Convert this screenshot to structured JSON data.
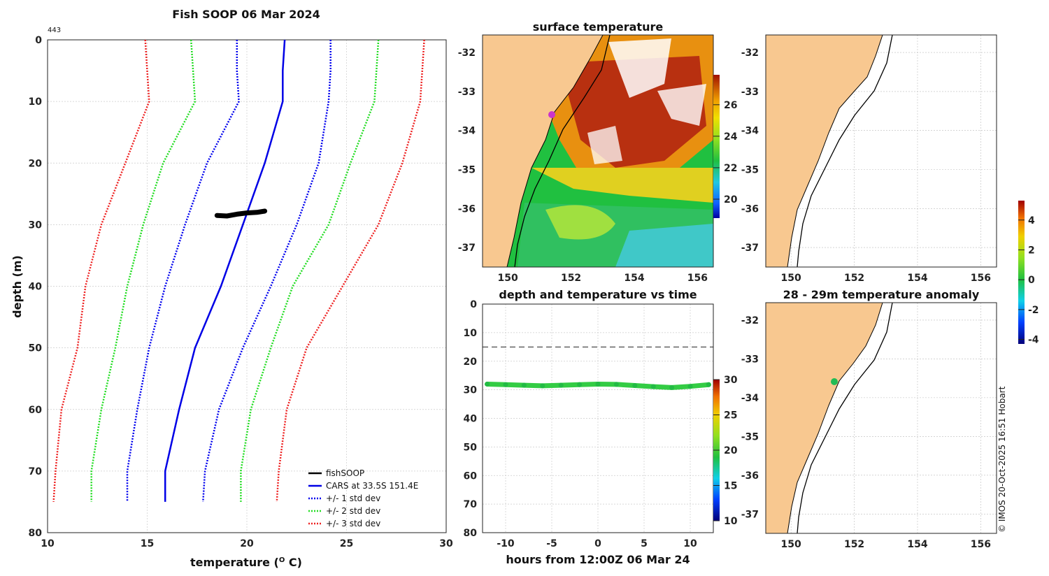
{
  "profile": {
    "title": "Fish SOOP 06 Mar 2024",
    "tag": "443",
    "xlabel": "temperature (",
    "xlabel_sup": "O",
    "xlabel_end": " C)",
    "ylabel": "depth (m)",
    "xlim": [
      10,
      30
    ],
    "ylim": [
      0,
      80
    ],
    "xticks": [
      "10",
      "15",
      "20",
      "25",
      "30"
    ],
    "yticks": [
      "0",
      "10",
      "20",
      "30",
      "40",
      "50",
      "60",
      "70",
      "80"
    ]
  },
  "chart_data": [
    {
      "type": "line",
      "title": "Fish SOOP 06 Mar 2024",
      "xlabel": "temperature (O C)",
      "ylabel": "depth (m)",
      "xlim": [
        10,
        30
      ],
      "ylim": [
        0,
        80
      ],
      "y_reversed": true,
      "series": [
        {
          "name": "CARS at 33.5S 151.4E",
          "color": "#0000e6",
          "style": "solid",
          "x": [
            21.9,
            21.8,
            21.8,
            20.9,
            19.8,
            18.7,
            17.4,
            16.6,
            15.9,
            15.9
          ],
          "y": [
            0,
            5,
            10,
            20,
            30,
            40,
            50,
            60,
            70,
            75
          ]
        },
        {
          "name": "+/- 1 std dev",
          "color": "#0000ee",
          "style": "dotted",
          "x": [
            19.5,
            19.5,
            19.6,
            18.0,
            16.9,
            15.9,
            15.1,
            14.5,
            14.0,
            14.0
          ],
          "y": [
            0,
            5,
            10,
            20,
            30,
            40,
            50,
            60,
            70,
            75
          ]
        },
        {
          "name": "+/- 1 std dev",
          "color": "#0000ee",
          "style": "dotted",
          "x": [
            24.2,
            24.2,
            24.1,
            23.6,
            22.5,
            21.2,
            19.8,
            18.6,
            17.9,
            17.8
          ],
          "y": [
            0,
            5,
            10,
            20,
            30,
            40,
            50,
            60,
            70,
            75
          ]
        },
        {
          "name": "+/- 2 std dev",
          "color": "#22dd22",
          "style": "dotted",
          "x": [
            17.2,
            17.3,
            17.4,
            15.8,
            14.8,
            14.0,
            13.4,
            12.7,
            12.2,
            12.2
          ],
          "y": [
            0,
            5,
            10,
            20,
            30,
            40,
            50,
            60,
            70,
            75
          ]
        },
        {
          "name": "+/- 2 std dev",
          "color": "#22dd22",
          "style": "dotted",
          "x": [
            26.6,
            26.5,
            26.4,
            25.2,
            24.1,
            22.3,
            21.2,
            20.2,
            19.7,
            19.7
          ],
          "y": [
            0,
            5,
            10,
            20,
            30,
            40,
            50,
            60,
            70,
            75
          ]
        },
        {
          "name": "+/- 3 std dev",
          "color": "#ee2222",
          "style": "dotted",
          "x": [
            14.9,
            15.0,
            15.1,
            13.9,
            12.7,
            11.9,
            11.5,
            10.7,
            10.4,
            10.3
          ],
          "y": [
            0,
            5,
            10,
            20,
            30,
            40,
            50,
            60,
            70,
            75
          ]
        },
        {
          "name": "+/- 3 std dev",
          "color": "#ee2222",
          "style": "dotted",
          "x": [
            28.9,
            28.8,
            28.7,
            27.8,
            26.6,
            24.8,
            23.0,
            22.0,
            21.6,
            21.5
          ],
          "y": [
            0,
            5,
            10,
            20,
            30,
            40,
            50,
            60,
            70,
            75
          ]
        },
        {
          "name": "fishSOOP",
          "color": "#000000",
          "style": "thick",
          "x": [
            18.5,
            19.0,
            19.5,
            20.0,
            20.5,
            20.9
          ],
          "y": [
            28.5,
            28.6,
            28.3,
            28.1,
            28.0,
            27.8
          ]
        }
      ]
    },
    {
      "type": "scatter",
      "title": "depth and temperature vs time",
      "xlabel": "hours from 12:00Z 06 Mar 24",
      "ylabel": "",
      "xlim": [
        -12.5,
        12.5
      ],
      "ylim": [
        0,
        80
      ],
      "y_reversed": true,
      "reference_line_depth": 15,
      "colorbar": {
        "min": 10,
        "max": 30,
        "ticks": [
          "10",
          "15",
          "20",
          "25",
          "30"
        ]
      },
      "series": [
        {
          "name": "fishSOOP depth",
          "temperature": 21,
          "x": [
            -12,
            -10,
            -8,
            -6,
            -4,
            -2,
            0,
            2,
            4,
            6,
            8,
            10,
            12
          ],
          "y": [
            28,
            28.2,
            28.4,
            28.6,
            28.4,
            28.2,
            28.0,
            28.1,
            28.5,
            28.9,
            29.2,
            28.8,
            28.2
          ]
        }
      ]
    },
    {
      "type": "heatmap",
      "title": "surface temperature",
      "xticks": [
        "150",
        "152",
        "154",
        "156"
      ],
      "yticks": [
        "-32",
        "-33",
        "-34",
        "-35",
        "-36",
        "-37"
      ],
      "colorbar": {
        "ticks": [
          "20",
          "22",
          "24",
          "26"
        ]
      }
    },
    {
      "type": "heatmap",
      "title": "",
      "xticks": [
        "150",
        "152",
        "154",
        "156"
      ],
      "yticks": [
        "-32",
        "-33",
        "-34",
        "-35",
        "-36",
        "-37"
      ]
    },
    {
      "type": "heatmap",
      "title": "28 - 29m temperature anomaly",
      "xticks": [
        "150",
        "152",
        "154",
        "156"
      ],
      "yticks": [
        "-32",
        "-33",
        "-34",
        "-35",
        "-36",
        "-37"
      ],
      "colorbar": {
        "min": -4,
        "max": 5,
        "ticks": [
          "-4",
          "-2",
          "0",
          "2",
          "4"
        ]
      }
    }
  ],
  "legend": [
    {
      "label": "fishSOOP",
      "color": "#000000",
      "style": "solid"
    },
    {
      "label": "CARS at 33.5S 151.4E",
      "color": "#0000e6",
      "style": "solid"
    },
    {
      "label": "+/- 1 std dev",
      "color": "#0000ee",
      "style": "dotted"
    },
    {
      "label": "+/- 2 std dev",
      "color": "#22dd22",
      "style": "dotted"
    },
    {
      "label": "+/- 3 std dev",
      "color": "#ee2222",
      "style": "dotted"
    }
  ],
  "sst_map": {
    "title": "surface temperature",
    "xticks": [
      "150",
      "152",
      "154",
      "156"
    ],
    "yticks": [
      "-32",
      "-33",
      "-34",
      "-35",
      "-36",
      "-37"
    ],
    "cbar_ticks": [
      "26",
      "24",
      "22",
      "20"
    ]
  },
  "time_plot": {
    "title": "depth and temperature vs time",
    "xlabel": "hours from 12:00Z 06 Mar 24",
    "xticks": [
      "-10",
      "-5",
      "0",
      "5",
      "10"
    ],
    "yticks": [
      "0",
      "10",
      "20",
      "30",
      "40",
      "50",
      "60",
      "70",
      "80"
    ],
    "cbar_ticks": [
      "30",
      "25",
      "20",
      "15",
      "10"
    ]
  },
  "coast_map": {
    "xticks": [
      "150",
      "152",
      "154",
      "156"
    ],
    "yticks": [
      "-32",
      "-33",
      "-34",
      "-35",
      "-36",
      "-37"
    ]
  },
  "anomaly_map": {
    "title": "28 - 29m temperature anomaly",
    "xticks": [
      "150",
      "152",
      "154",
      "156"
    ],
    "yticks": [
      "-32",
      "-33",
      "-34",
      "-35",
      "-36",
      "-37"
    ]
  },
  "anomaly_cbar": {
    "ticks": [
      "4",
      "2",
      "0",
      "-2",
      "-4"
    ]
  },
  "credit": "© IMOS 20-Oct-2025 16:51 Hobart",
  "colors": {
    "land": "#f8c890",
    "cars": "#0000e6",
    "std1": "#0000ee",
    "std2": "#22dd22",
    "std3": "#ee2222",
    "marker": "#cc33cc",
    "anomaly_marker": "#22bb55"
  }
}
